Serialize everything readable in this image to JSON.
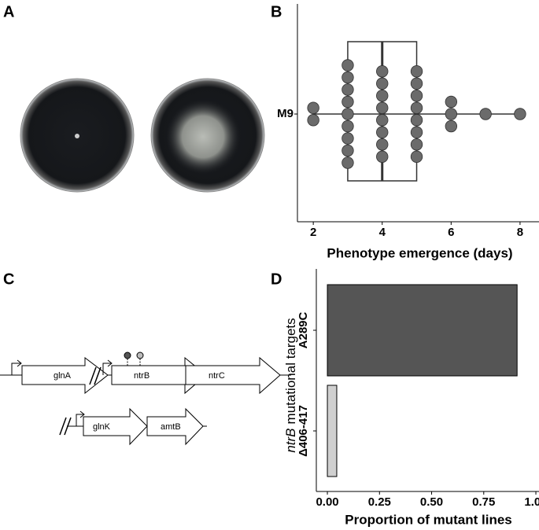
{
  "panels": [
    "A",
    "B",
    "C",
    "D"
  ],
  "diagram": {
    "genes": [
      "glnA",
      "ntrB",
      "ntrC",
      "glnK",
      "amtB"
    ]
  },
  "chart_data": [
    {
      "type": "dot_box",
      "categories": [
        "M9"
      ],
      "values": [
        2,
        2,
        3,
        3,
        3,
        3,
        3,
        3,
        3,
        3,
        3,
        4,
        4,
        4,
        4,
        4,
        4,
        4,
        4,
        5,
        5,
        5,
        5,
        5,
        5,
        5,
        5,
        6,
        6,
        6,
        7,
        8
      ],
      "box": {
        "min": 2,
        "q1": 3,
        "median": 4,
        "q3": 5,
        "max": 8
      },
      "xlabel": "Phenotype emergence (days)",
      "xlim": [
        1.54,
        8.55
      ],
      "xticks": [
        2,
        4,
        6,
        8
      ],
      "color": "#6b6b6b"
    },
    {
      "type": "hbar",
      "categories": [
        "A289C",
        "Δ406-417"
      ],
      "values": [
        0.91,
        0.045
      ],
      "colors": [
        "#555555",
        "#d0d0d0"
      ],
      "xlabel": "Proportion of mutant lines",
      "ylabel_parts": [
        "ntrB",
        "mutational targets"
      ],
      "xlim": [
        -0.053,
        1.015
      ],
      "xticks": [
        {
          "value": 0,
          "label": "0.00"
        },
        {
          "value": 0.25,
          "label": "0.25"
        },
        {
          "value": 0.5,
          "label": "0.50"
        },
        {
          "value": 0.75,
          "label": "0.75"
        },
        {
          "value": 1,
          "label": "1.00"
        }
      ]
    }
  ]
}
